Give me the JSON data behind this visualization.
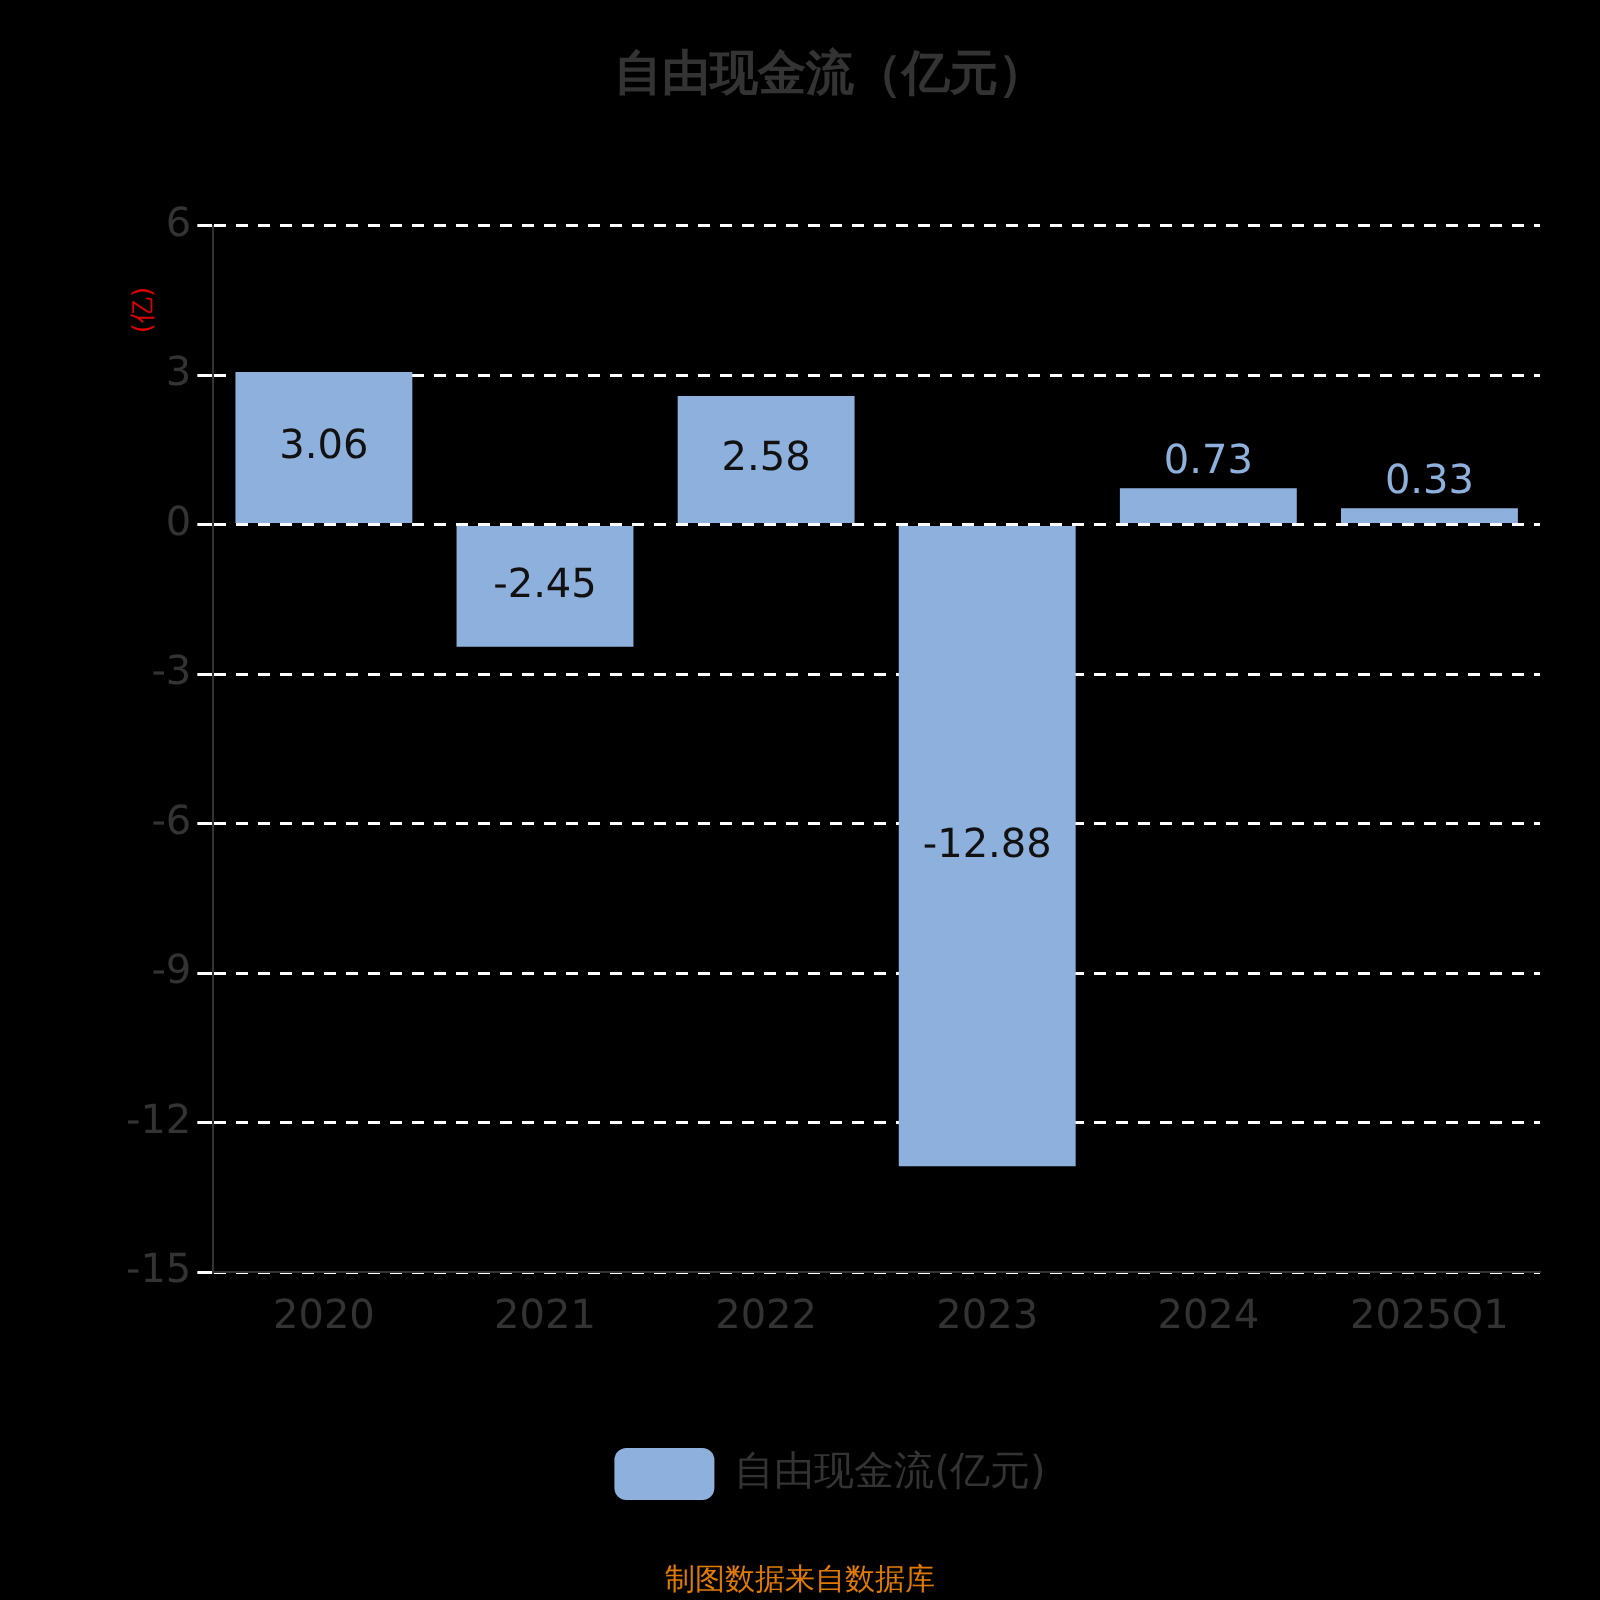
{
  "chart_data": {
    "type": "bar",
    "title": "自由现金流（亿元）",
    "ylabel": "(亿)",
    "categories": [
      "2020",
      "2021",
      "2022",
      "2023",
      "2024",
      "2025Q1"
    ],
    "series": [
      {
        "name": "自由现金流(亿元)",
        "color": "#8eb0dc",
        "values": [
          3.06,
          -2.45,
          2.58,
          -12.88,
          0.73,
          0.33
        ]
      }
    ],
    "ylim": [
      -15,
      6
    ],
    "yticks": [
      -15,
      -12,
      -9,
      -6,
      -3,
      0,
      3,
      6
    ],
    "grid": "y",
    "legend": "bottom",
    "data_labels": true,
    "annotations": [
      "制图数据来自数据库"
    ]
  }
}
